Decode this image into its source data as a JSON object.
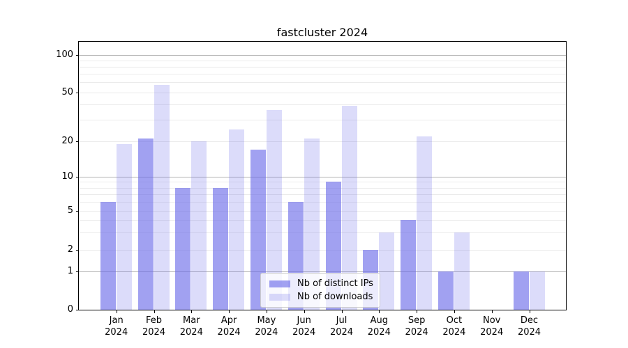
{
  "title": "fastcluster 2024",
  "chart_data": {
    "type": "bar",
    "title": "fastcluster 2024",
    "x_months": [
      "Jan",
      "Feb",
      "Mar",
      "Apr",
      "May",
      "Jun",
      "Jul",
      "Aug",
      "Sep",
      "Oct",
      "Nov",
      "Dec"
    ],
    "x_year": "2024",
    "series": [
      {
        "name": "Nb of distinct IPs",
        "values": [
          6,
          21,
          8,
          8,
          17,
          6,
          9,
          2,
          4,
          1,
          0,
          1
        ]
      },
      {
        "name": "Nb of downloads",
        "values": [
          19,
          57,
          20,
          25,
          36,
          21,
          39,
          3,
          22,
          3,
          0,
          1
        ]
      }
    ],
    "yscale": "symlog",
    "yticks": [
      0,
      1,
      2,
      5,
      10,
      20,
      50,
      100
    ],
    "minor_grid_values": [
      2,
      3,
      4,
      5,
      6,
      7,
      8,
      9,
      20,
      30,
      40,
      50,
      60,
      70,
      80,
      90
    ],
    "major_grid_values": [
      1,
      10,
      100
    ],
    "ylim": [
      0,
      130
    ],
    "grid": true,
    "legend_position": "lower-center"
  },
  "colors": {
    "distinct_ips": "rgba(104,104,233,0.62)",
    "downloads": "rgba(104,104,233,0.23)",
    "major_grid": "#b3b3b3",
    "minor_grid": "#ebebeb",
    "axis": "#000000"
  }
}
